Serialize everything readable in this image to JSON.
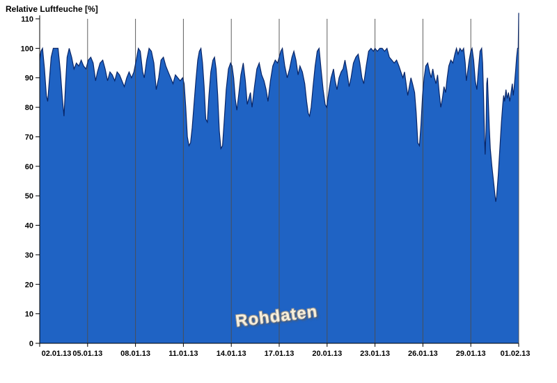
{
  "title": "Relative Luftfeuche [%]",
  "watermark": "Rohdaten",
  "chart_data": {
    "type": "area",
    "title": "Relative Luftfeuche [%]",
    "xlabel": "",
    "ylabel": "Relative Luftfeuche [%]",
    "xlim": [
      0,
      30
    ],
    "ylim": [
      0,
      110
    ],
    "grid": "vertical-only",
    "legend": "none",
    "annotation": "Rohdaten",
    "y_ticks": [
      0,
      10,
      20,
      30,
      40,
      50,
      60,
      70,
      80,
      90,
      100,
      110
    ],
    "x_ticks": [
      {
        "day": 0,
        "label": "02.01.13"
      },
      {
        "day": 3,
        "label": "05.01.13"
      },
      {
        "day": 6,
        "label": "08.01.13"
      },
      {
        "day": 9,
        "label": "11.01.13"
      },
      {
        "day": 12,
        "label": "14.01.13"
      },
      {
        "day": 15,
        "label": "17.01.13"
      },
      {
        "day": 18,
        "label": "20.01.13"
      },
      {
        "day": 21,
        "label": "23.01.13"
      },
      {
        "day": 24,
        "label": "26.01.13"
      },
      {
        "day": 27,
        "label": "29.01.13"
      },
      {
        "day": 30,
        "label": "01.02.13"
      }
    ],
    "colors": {
      "fill": "#1f63c4",
      "line": "#082567",
      "grid": "#4d4d4d",
      "axis": "#000000",
      "text": "#000000",
      "watermark": "#f7efdc"
    },
    "series": [
      {
        "name": "Relative Luftfeuche",
        "unit": "%",
        "x_unit": "days since 02.01.13",
        "points": [
          [
            0,
            96
          ],
          [
            0.08,
            99
          ],
          [
            0.18,
            100
          ],
          [
            0.3,
            93
          ],
          [
            0.42,
            84
          ],
          [
            0.5,
            82
          ],
          [
            0.6,
            89
          ],
          [
            0.72,
            97
          ],
          [
            0.85,
            100
          ],
          [
            1,
            100
          ],
          [
            1.15,
            100
          ],
          [
            1.3,
            92
          ],
          [
            1.42,
            83
          ],
          [
            1.52,
            77
          ],
          [
            1.62,
            88
          ],
          [
            1.72,
            97
          ],
          [
            1.85,
            100
          ],
          [
            2,
            97
          ],
          [
            2.15,
            93
          ],
          [
            2.3,
            95
          ],
          [
            2.45,
            94
          ],
          [
            2.6,
            96
          ],
          [
            2.75,
            94
          ],
          [
            2.9,
            93
          ],
          [
            3.05,
            96
          ],
          [
            3.2,
            97
          ],
          [
            3.35,
            95
          ],
          [
            3.5,
            89
          ],
          [
            3.62,
            92
          ],
          [
            3.78,
            95
          ],
          [
            3.95,
            96
          ],
          [
            4.1,
            93
          ],
          [
            4.25,
            89
          ],
          [
            4.4,
            92
          ],
          [
            4.55,
            91
          ],
          [
            4.7,
            89
          ],
          [
            4.85,
            92
          ],
          [
            5,
            91
          ],
          [
            5.15,
            89
          ],
          [
            5.3,
            87
          ],
          [
            5.45,
            90
          ],
          [
            5.6,
            92
          ],
          [
            5.75,
            90
          ],
          [
            5.9,
            92
          ],
          [
            6.05,
            96
          ],
          [
            6.18,
            100
          ],
          [
            6.3,
            99
          ],
          [
            6.45,
            92
          ],
          [
            6.55,
            90
          ],
          [
            6.7,
            96
          ],
          [
            6.85,
            100
          ],
          [
            7,
            99
          ],
          [
            7.15,
            95
          ],
          [
            7.3,
            86
          ],
          [
            7.45,
            90
          ],
          [
            7.6,
            96
          ],
          [
            7.75,
            97
          ],
          [
            7.9,
            94
          ],
          [
            8.05,
            92
          ],
          [
            8.2,
            90
          ],
          [
            8.35,
            88
          ],
          [
            8.5,
            91
          ],
          [
            8.65,
            90
          ],
          [
            8.8,
            89
          ],
          [
            8.95,
            90
          ],
          [
            9.05,
            88
          ],
          [
            9.15,
            80
          ],
          [
            9.25,
            70
          ],
          [
            9.35,
            67
          ],
          [
            9.45,
            68
          ],
          [
            9.55,
            73
          ],
          [
            9.65,
            80
          ],
          [
            9.78,
            89
          ],
          [
            9.9,
            96
          ],
          [
            10,
            99
          ],
          [
            10.1,
            100
          ],
          [
            10.2,
            95
          ],
          [
            10.3,
            87
          ],
          [
            10.4,
            76
          ],
          [
            10.5,
            75
          ],
          [
            10.6,
            84
          ],
          [
            10.72,
            92
          ],
          [
            10.85,
            96
          ],
          [
            10.95,
            97
          ],
          [
            11.05,
            93
          ],
          [
            11.15,
            84
          ],
          [
            11.25,
            72
          ],
          [
            11.35,
            66
          ],
          [
            11.45,
            67
          ],
          [
            11.55,
            75
          ],
          [
            11.68,
            86
          ],
          [
            11.82,
            93
          ],
          [
            11.95,
            95
          ],
          [
            12.05,
            94
          ],
          [
            12.15,
            90
          ],
          [
            12.25,
            83
          ],
          [
            12.35,
            79
          ],
          [
            12.48,
            85
          ],
          [
            12.6,
            91
          ],
          [
            12.75,
            95
          ],
          [
            12.88,
            89
          ],
          [
            13,
            81
          ],
          [
            13.1,
            83
          ],
          [
            13.2,
            85
          ],
          [
            13.3,
            80
          ],
          [
            13.45,
            87
          ],
          [
            13.6,
            93
          ],
          [
            13.75,
            95
          ],
          [
            13.9,
            91
          ],
          [
            14.05,
            89
          ],
          [
            14.18,
            86
          ],
          [
            14.3,
            82
          ],
          [
            14.45,
            89
          ],
          [
            14.6,
            94
          ],
          [
            14.75,
            96
          ],
          [
            14.9,
            95
          ],
          [
            15,
            97
          ],
          [
            15.1,
            99
          ],
          [
            15.2,
            100
          ],
          [
            15.35,
            94
          ],
          [
            15.5,
            90
          ],
          [
            15.65,
            93
          ],
          [
            15.8,
            97
          ],
          [
            15.92,
            99
          ],
          [
            16.05,
            96
          ],
          [
            16.18,
            91
          ],
          [
            16.3,
            94
          ],
          [
            16.45,
            92
          ],
          [
            16.6,
            88
          ],
          [
            16.72,
            82
          ],
          [
            16.82,
            78
          ],
          [
            16.9,
            77
          ],
          [
            17,
            80
          ],
          [
            17.12,
            87
          ],
          [
            17.25,
            94
          ],
          [
            17.38,
            99
          ],
          [
            17.5,
            100
          ],
          [
            17.62,
            93
          ],
          [
            17.75,
            86
          ],
          [
            17.88,
            81
          ],
          [
            17.98,
            80
          ],
          [
            18.1,
            85
          ],
          [
            18.25,
            90
          ],
          [
            18.4,
            93
          ],
          [
            18.5,
            89
          ],
          [
            18.62,
            86
          ],
          [
            18.75,
            90
          ],
          [
            18.88,
            92
          ],
          [
            19,
            93
          ],
          [
            19.12,
            96
          ],
          [
            19.25,
            92
          ],
          [
            19.38,
            87
          ],
          [
            19.5,
            90
          ],
          [
            19.65,
            95
          ],
          [
            19.8,
            97
          ],
          [
            19.95,
            98
          ],
          [
            20.05,
            95
          ],
          [
            20.18,
            90
          ],
          [
            20.3,
            88
          ],
          [
            20.45,
            94
          ],
          [
            20.6,
            99
          ],
          [
            20.75,
            100
          ],
          [
            20.9,
            99
          ],
          [
            21,
            100
          ],
          [
            21.15,
            99
          ],
          [
            21.3,
            100
          ],
          [
            21.45,
            100
          ],
          [
            21.6,
            99
          ],
          [
            21.75,
            100
          ],
          [
            21.9,
            97
          ],
          [
            22.05,
            96
          ],
          [
            22.2,
            95
          ],
          [
            22.35,
            96
          ],
          [
            22.5,
            94
          ],
          [
            22.62,
            92
          ],
          [
            22.75,
            90
          ],
          [
            22.85,
            92
          ],
          [
            22.95,
            88
          ],
          [
            23.05,
            84
          ],
          [
            23.15,
            87
          ],
          [
            23.25,
            90
          ],
          [
            23.35,
            88
          ],
          [
            23.48,
            85
          ],
          [
            23.58,
            78
          ],
          [
            23.68,
            68
          ],
          [
            23.78,
            67
          ],
          [
            23.88,
            74
          ],
          [
            23.98,
            84
          ],
          [
            24.08,
            90
          ],
          [
            24.18,
            94
          ],
          [
            24.3,
            95
          ],
          [
            24.42,
            92
          ],
          [
            24.52,
            90
          ],
          [
            24.62,
            93
          ],
          [
            24.72,
            90
          ],
          [
            24.82,
            88
          ],
          [
            24.92,
            91
          ],
          [
            25.02,
            85
          ],
          [
            25.12,
            80
          ],
          [
            25.22,
            83
          ],
          [
            25.32,
            87
          ],
          [
            25.42,
            85
          ],
          [
            25.52,
            90
          ],
          [
            25.62,
            94
          ],
          [
            25.75,
            96
          ],
          [
            25.88,
            95
          ],
          [
            26,
            98
          ],
          [
            26.1,
            100
          ],
          [
            26.2,
            98
          ],
          [
            26.32,
            100
          ],
          [
            26.45,
            99
          ],
          [
            26.55,
            100
          ],
          [
            26.65,
            95
          ],
          [
            26.72,
            89
          ],
          [
            26.8,
            92
          ],
          [
            26.9,
            96
          ],
          [
            27,
            99
          ],
          [
            27.08,
            100
          ],
          [
            27.18,
            96
          ],
          [
            27.28,
            89
          ],
          [
            27.38,
            86
          ],
          [
            27.48,
            93
          ],
          [
            27.58,
            99
          ],
          [
            27.68,
            100
          ],
          [
            27.74,
            95
          ],
          [
            27.8,
            84
          ],
          [
            27.86,
            70
          ],
          [
            27.9,
            64
          ],
          [
            27.95,
            72
          ],
          [
            28,
            88
          ],
          [
            28.04,
            90
          ],
          [
            28.1,
            82
          ],
          [
            28.16,
            73
          ],
          [
            28.22,
            66
          ],
          [
            28.32,
            60
          ],
          [
            28.42,
            55
          ],
          [
            28.5,
            51
          ],
          [
            28.56,
            48
          ],
          [
            28.62,
            50
          ],
          [
            28.72,
            57
          ],
          [
            28.82,
            66
          ],
          [
            28.92,
            75
          ],
          [
            29,
            81
          ],
          [
            29.06,
            84
          ],
          [
            29.12,
            82
          ],
          [
            29.2,
            86
          ],
          [
            29.28,
            83
          ],
          [
            29.36,
            85
          ],
          [
            29.44,
            82
          ],
          [
            29.52,
            85
          ],
          [
            29.6,
            88
          ],
          [
            29.66,
            84
          ],
          [
            29.72,
            87
          ],
          [
            29.8,
            92
          ],
          [
            29.87,
            97
          ],
          [
            29.93,
            100
          ],
          [
            29.97,
            100
          ],
          [
            30,
            112
          ]
        ]
      }
    ]
  }
}
